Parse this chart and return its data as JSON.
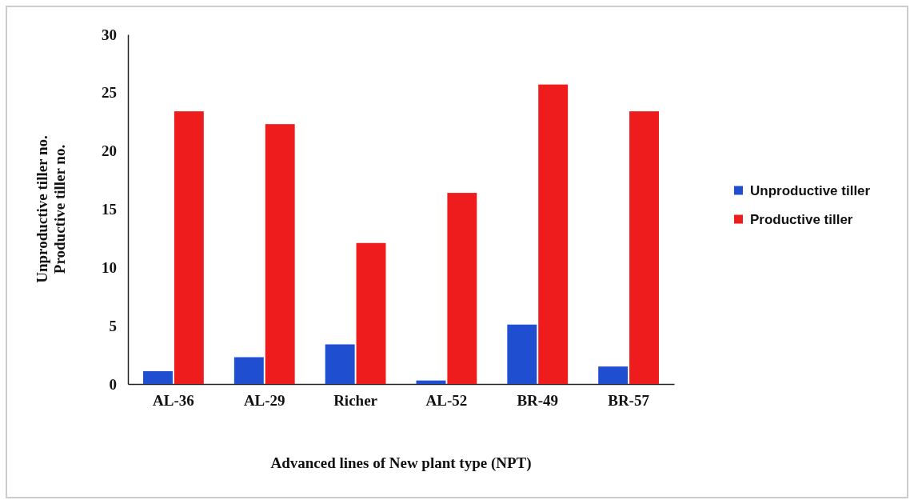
{
  "chart_data": {
    "type": "bar",
    "xlabel": "Advanced lines of New plant type (NPT)",
    "ylabel": "Unproductive tiller no.\nProductive tiller no.",
    "categories": [
      "AL-36",
      "AL-29",
      "Richer",
      "AL-52",
      "BR-49",
      "BR-57"
    ],
    "series": [
      {
        "name": "Unproductive tiller",
        "color": "#1f4fd0",
        "values": [
          1.1,
          2.3,
          3.4,
          0.3,
          5.1,
          1.5
        ]
      },
      {
        "name": "Productive tiller",
        "color": "#ee1c1c",
        "values": [
          23.4,
          22.3,
          12.1,
          16.4,
          25.7,
          23.4
        ]
      }
    ],
    "ylim": [
      0,
      30
    ],
    "yticks": [
      0,
      5,
      10,
      15,
      20,
      25,
      30
    ],
    "legend": "right"
  }
}
